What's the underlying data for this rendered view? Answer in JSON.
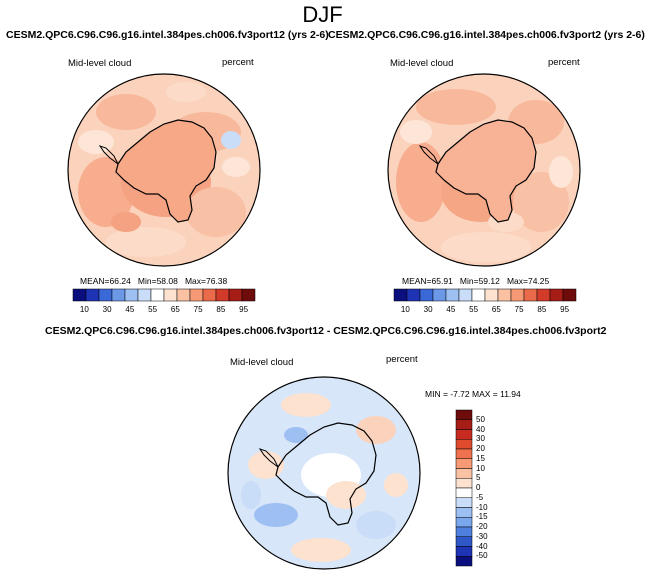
{
  "figure": {
    "title": "DJF",
    "left_panel": {
      "title": "CESM2.QPC6.C96.C96.g16.intel.384pes.ch006.fv3port12 (yrs 2-6)",
      "variable": "Mid-level cloud",
      "units": "percent",
      "stats": {
        "mean": "66.24",
        "min": "58.08",
        "max": "76.38"
      },
      "stats_labels": {
        "mean": "MEAN=",
        "min": "Min=",
        "max": "Max="
      }
    },
    "right_panel": {
      "title": "CESM2.QPC6.C96.C96.g16.intel.384pes.ch006.fv3port2 (yrs 2-6)",
      "variable": "Mid-level cloud",
      "units": "percent",
      "stats": {
        "mean": "65.91",
        "min": "59.12",
        "max": "74.25"
      },
      "stats_labels": {
        "mean": "MEAN=",
        "min": "Min=",
        "max": "Max="
      }
    },
    "diff_panel": {
      "title": "CESM2.QPC6.C96.C96.g16.intel.384pes.ch006.fv3port12 - CESM2.QPC6.C96.C96.g16.intel.384pes.ch006.fv3port2",
      "variable": "Mid-level cloud",
      "units": "percent",
      "minmax_text": "MIN = -7.72 MAX = 11.94"
    },
    "colorbar_top": {
      "labels": [
        "10",
        "30",
        "45",
        "55",
        "65",
        "75",
        "85",
        "95"
      ],
      "colors": [
        "#0b0f7d",
        "#1f34b5",
        "#3a68d6",
        "#6b99e8",
        "#9dbff2",
        "#c9dcf8",
        "#ffffff",
        "#fde2d0",
        "#fbc1a3",
        "#f69a76",
        "#ea6a4a",
        "#d23a2a",
        "#a61c16",
        "#6e0b0b"
      ]
    },
    "colorbar_diff": {
      "labels": [
        "50",
        "40",
        "30",
        "20",
        "15",
        "10",
        "5",
        "0",
        "-5",
        "-10",
        "-15",
        "-20",
        "-30",
        "-40",
        "-50"
      ],
      "colors": [
        "#6e0b0b",
        "#a61c16",
        "#c72a1f",
        "#e04a2f",
        "#f0714d",
        "#f79a76",
        "#fbc1a3",
        "#fde2d0",
        "#ffffff",
        "#c9dcf8",
        "#9dbff2",
        "#7aa7ee",
        "#4f80df",
        "#2f57c7",
        "#1f34b5",
        "#0b0f7d"
      ]
    }
  }
}
